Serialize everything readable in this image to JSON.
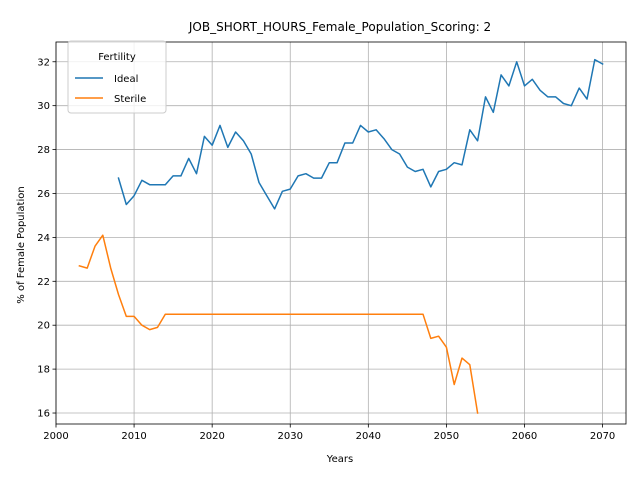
{
  "chart_data": {
    "type": "line",
    "title": "JOB_SHORT_HOURS_Female_Population_Scoring: 2",
    "xlabel": "Years",
    "ylabel": "% of Female Population",
    "xlim": [
      2000,
      2073
    ],
    "ylim": [
      15.5,
      32.9
    ],
    "xticks": [
      2000,
      2010,
      2020,
      2030,
      2040,
      2050,
      2060,
      2070
    ],
    "yticks": [
      16,
      18,
      20,
      22,
      24,
      26,
      28,
      30,
      32
    ],
    "grid": true,
    "legend": {
      "title": "Fertility",
      "placement": "top-left"
    },
    "series": [
      {
        "name": "Ideal",
        "color": "#1f77b4",
        "x": [
          2008,
          2009,
          2010,
          2011,
          2012,
          2013,
          2014,
          2015,
          2016,
          2017,
          2018,
          2019,
          2020,
          2021,
          2022,
          2023,
          2024,
          2025,
          2026,
          2027,
          2028,
          2029,
          2030,
          2031,
          2032,
          2033,
          2034,
          2035,
          2036,
          2037,
          2038,
          2039,
          2040,
          2041,
          2042,
          2043,
          2044,
          2045,
          2046,
          2047,
          2048,
          2049,
          2050,
          2051,
          2052,
          2053,
          2054,
          2055,
          2056,
          2057,
          2058,
          2059,
          2060,
          2061,
          2062,
          2063,
          2064,
          2065,
          2066,
          2067,
          2068,
          2069,
          2070
        ],
        "y": [
          26.7,
          25.5,
          25.9,
          26.6,
          26.4,
          26.4,
          26.4,
          26.8,
          26.8,
          27.6,
          26.9,
          28.6,
          28.2,
          29.1,
          28.1,
          28.8,
          28.4,
          27.8,
          26.5,
          25.9,
          25.3,
          26.1,
          26.2,
          26.8,
          26.9,
          26.7,
          26.7,
          27.4,
          27.4,
          28.3,
          28.3,
          29.1,
          28.8,
          28.9,
          28.5,
          28.0,
          27.8,
          27.2,
          27.0,
          27.1,
          26.3,
          27.0,
          27.1,
          27.4,
          27.3,
          28.9,
          28.4,
          30.4,
          29.7,
          31.4,
          30.9,
          32.0,
          30.9,
          31.2,
          30.7,
          30.4,
          30.4,
          30.1,
          30.0,
          30.8,
          30.3,
          32.1,
          31.9
        ]
      },
      {
        "name": "Sterile",
        "color": "#ff7f0e",
        "x": [
          2003,
          2004,
          2005,
          2006,
          2007,
          2008,
          2009,
          2010,
          2011,
          2012,
          2013,
          2014,
          2015,
          2016,
          2017,
          2018,
          2019,
          2020,
          2021,
          2022,
          2023,
          2024,
          2025,
          2026,
          2027,
          2028,
          2029,
          2030,
          2031,
          2032,
          2033,
          2034,
          2035,
          2036,
          2037,
          2038,
          2039,
          2040,
          2041,
          2042,
          2043,
          2044,
          2045,
          2046,
          2047,
          2048,
          2049,
          2050,
          2051,
          2052,
          2053,
          2054
        ],
        "y": [
          22.7,
          22.6,
          23.6,
          24.1,
          22.6,
          21.4,
          20.4,
          20.4,
          20.0,
          19.8,
          19.9,
          20.5,
          20.5,
          20.5,
          20.5,
          20.5,
          20.5,
          20.5,
          20.5,
          20.5,
          20.5,
          20.5,
          20.5,
          20.5,
          20.5,
          20.5,
          20.5,
          20.5,
          20.5,
          20.5,
          20.5,
          20.5,
          20.5,
          20.5,
          20.5,
          20.5,
          20.5,
          20.5,
          20.5,
          20.5,
          20.5,
          20.5,
          20.5,
          20.5,
          20.5,
          19.4,
          19.5,
          19.0,
          17.3,
          18.5,
          18.2,
          16.0
        ]
      }
    ]
  }
}
